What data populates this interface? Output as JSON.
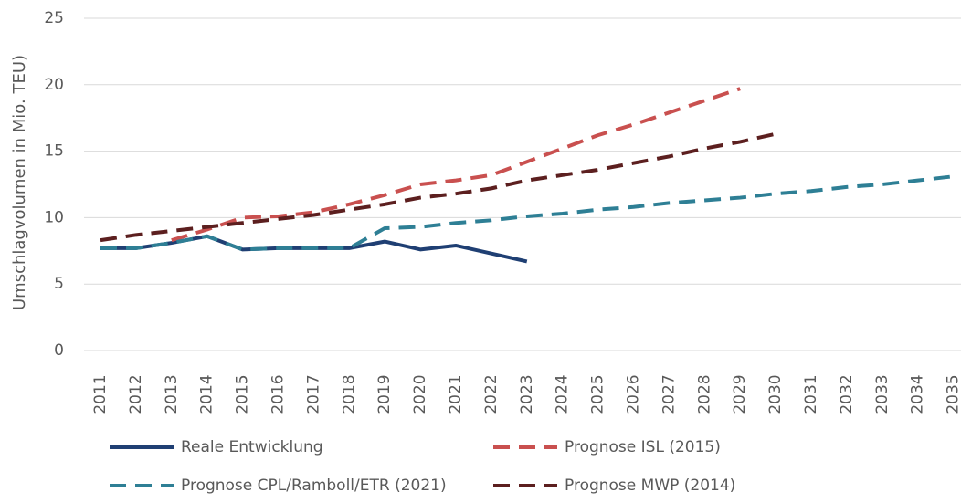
{
  "chart_data": {
    "type": "line",
    "y_axis_label": "Umschlagvolumen in Mio. TEU)",
    "categories": [
      "2011",
      "2012",
      "2013",
      "2014",
      "2015",
      "2016",
      "2017",
      "2018",
      "2019",
      "2020",
      "2021",
      "2022",
      "2023",
      "2024",
      "2025",
      "2026",
      "2027",
      "2028",
      "2029",
      "2030",
      "2031",
      "2032",
      "2033",
      "2034",
      "2035"
    ],
    "ylim": [
      0,
      25
    ],
    "yticks": [
      0,
      5,
      10,
      15,
      20,
      25
    ],
    "grid": true,
    "series": [
      {
        "name": "Reale Entwicklung",
        "color": "#1f3f73",
        "dashed": false,
        "values": [
          7.7,
          7.7,
          8.1,
          8.6,
          7.6,
          7.7,
          7.7,
          7.7,
          8.2,
          7.6,
          7.9,
          7.3,
          6.7,
          null,
          null,
          null,
          null,
          null,
          null,
          null,
          null,
          null,
          null,
          null,
          null
        ]
      },
      {
        "name": "Prognose ISL (2015)",
        "color": "#c9504f",
        "dashed": true,
        "values": [
          null,
          null,
          8.3,
          9.1,
          10.0,
          10.1,
          10.4,
          11.0,
          11.7,
          12.5,
          12.8,
          13.2,
          14.2,
          15.2,
          16.2,
          17.0,
          17.9,
          18.8,
          19.7,
          null,
          null,
          null,
          null,
          null,
          null
        ]
      },
      {
        "name": "Prognose CPL/Ramboll/ETR (2021)",
        "color": "#2e7f95",
        "dashed": true,
        "values": [
          7.7,
          7.7,
          8.1,
          8.6,
          7.6,
          7.7,
          7.7,
          7.7,
          9.2,
          9.3,
          9.6,
          9.8,
          10.1,
          10.3,
          10.6,
          10.8,
          11.1,
          11.3,
          11.5,
          11.8,
          12.0,
          12.3,
          12.5,
          12.8,
          13.1
        ]
      },
      {
        "name": "Prognose MWP (2014)",
        "color": "#5c1f1f",
        "dashed": true,
        "values": [
          8.3,
          8.7,
          9.0,
          9.3,
          9.6,
          9.9,
          10.2,
          10.6,
          11.0,
          11.5,
          11.8,
          12.2,
          12.8,
          13.2,
          13.6,
          14.1,
          14.6,
          15.2,
          15.7,
          16.3,
          null,
          null,
          null,
          null,
          null
        ]
      }
    ]
  }
}
